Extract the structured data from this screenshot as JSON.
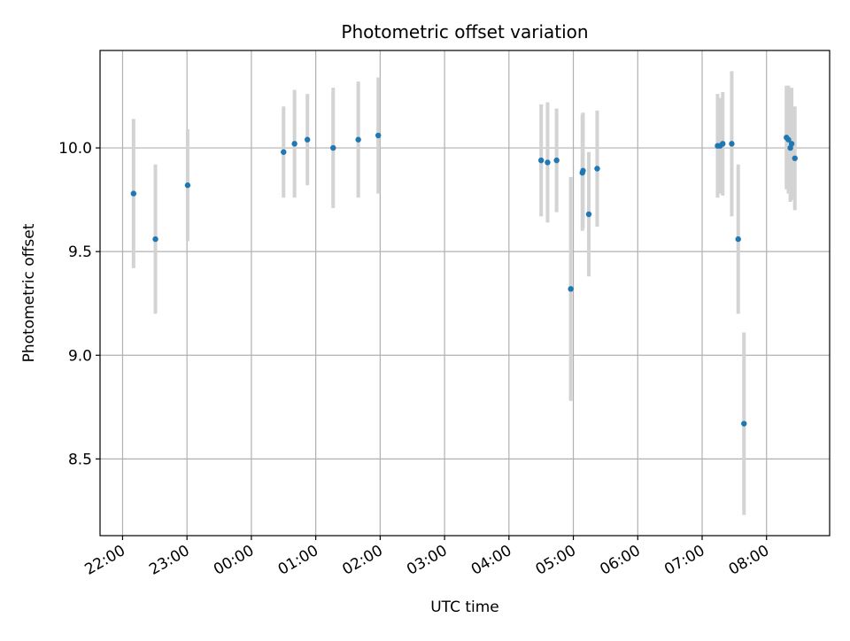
{
  "chart_data": {
    "type": "scatter",
    "title": "Photometric offset variation",
    "xlabel": "UTC time",
    "ylabel": "Photometric offset",
    "x_unit": "hours",
    "x_range": [
      -2.35,
      8.98
    ],
    "ylim": [
      8.13,
      10.47
    ],
    "x_ticks": [
      -2,
      -1,
      0,
      1,
      2,
      3,
      4,
      5,
      6,
      7,
      8
    ],
    "x_tick_labels": [
      "22:00",
      "23:00",
      "00:00",
      "01:00",
      "02:00",
      "03:00",
      "04:00",
      "05:00",
      "06:00",
      "07:00",
      "08:00"
    ],
    "y_ticks": [
      8.5,
      9.0,
      9.5,
      10.0
    ],
    "y_tick_labels": [
      "8.5",
      "9.0",
      "9.5",
      "10.0"
    ],
    "grid": true,
    "point_color": "#1f77b4",
    "errorbar_color": "#d3d3d3",
    "points": [
      {
        "x": -1.83,
        "y": 9.78,
        "err": 0.36
      },
      {
        "x": -1.49,
        "y": 9.56,
        "err": 0.36
      },
      {
        "x": -0.99,
        "y": 9.82,
        "err": 0.27
      },
      {
        "x": 0.5,
        "y": 9.98,
        "err": 0.22
      },
      {
        "x": 0.67,
        "y": 10.02,
        "err": 0.26
      },
      {
        "x": 0.87,
        "y": 10.04,
        "err": 0.22
      },
      {
        "x": 1.27,
        "y": 10.0,
        "err": 0.29
      },
      {
        "x": 1.66,
        "y": 10.04,
        "err": 0.28
      },
      {
        "x": 1.97,
        "y": 10.06,
        "err": 0.28
      },
      {
        "x": 4.5,
        "y": 9.94,
        "err": 0.27
      },
      {
        "x": 4.6,
        "y": 9.93,
        "err": 0.29
      },
      {
        "x": 4.74,
        "y": 9.94,
        "err": 0.25
      },
      {
        "x": 4.96,
        "y": 9.32,
        "err": 0.54
      },
      {
        "x": 5.14,
        "y": 9.88,
        "err": 0.28
      },
      {
        "x": 5.15,
        "y": 9.89,
        "err": 0.28
      },
      {
        "x": 5.24,
        "y": 9.68,
        "err": 0.3
      },
      {
        "x": 5.37,
        "y": 9.9,
        "err": 0.28
      },
      {
        "x": 7.24,
        "y": 10.01,
        "err": 0.25
      },
      {
        "x": 7.28,
        "y": 10.01,
        "err": 0.23
      },
      {
        "x": 7.32,
        "y": 10.02,
        "err": 0.25
      },
      {
        "x": 7.46,
        "y": 10.02,
        "err": 0.35
      },
      {
        "x": 7.56,
        "y": 9.56,
        "err": 0.36
      },
      {
        "x": 7.65,
        "y": 8.67,
        "err": 0.44
      },
      {
        "x": 8.31,
        "y": 10.05,
        "err": 0.25
      },
      {
        "x": 8.34,
        "y": 10.04,
        "err": 0.26
      },
      {
        "x": 8.37,
        "y": 10.0,
        "err": 0.26
      },
      {
        "x": 8.39,
        "y": 10.02,
        "err": 0.27
      },
      {
        "x": 8.44,
        "y": 9.95,
        "err": 0.25
      }
    ]
  }
}
